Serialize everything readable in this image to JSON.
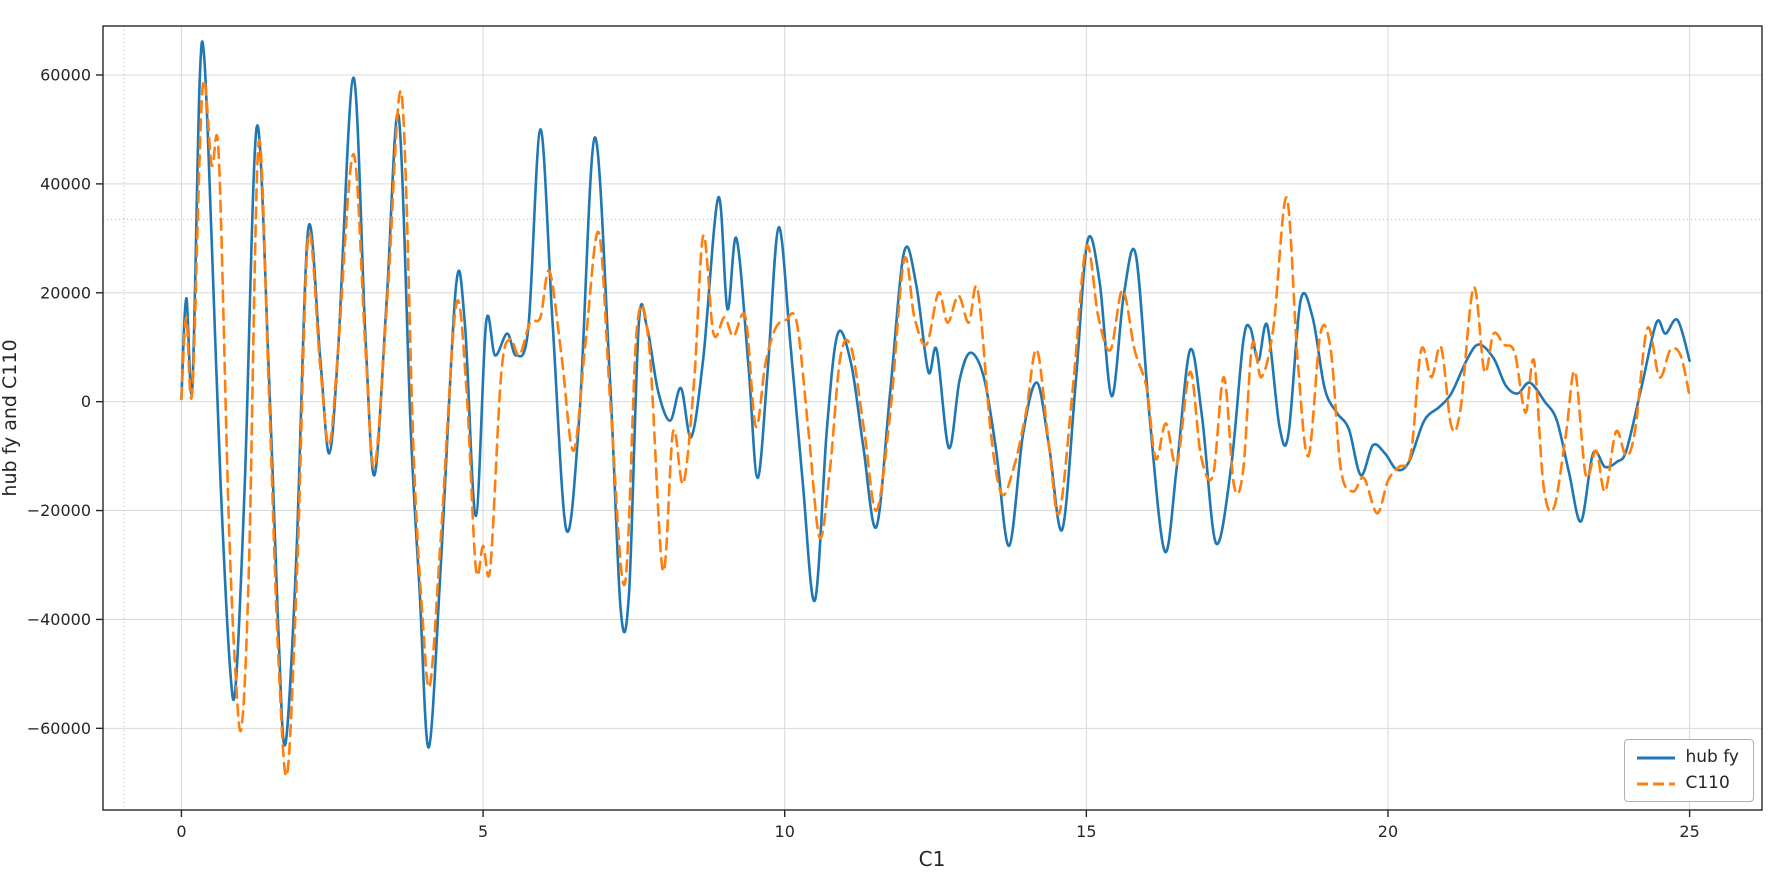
{
  "figure": {
    "background": "#ffffff",
    "border_color": "#262626"
  },
  "chart_data": {
    "type": "line",
    "title": "",
    "xlabel": "C1",
    "ylabel": "hub fy and C110",
    "xlim": [
      -1.3,
      26.2
    ],
    "ylim": [
      -75000,
      69000
    ],
    "grid": true,
    "grid_color": "#d9d9d9",
    "tick_color": "#262626",
    "legend_position": "lower right",
    "xticks": {
      "values": [
        0,
        5,
        10,
        15,
        20,
        25
      ],
      "labels": [
        "0",
        "5",
        "10",
        "15",
        "20",
        "25"
      ]
    },
    "yticks": {
      "values": [
        -60000,
        -40000,
        -20000,
        0,
        20000,
        40000,
        60000
      ],
      "labels": [
        "−60000",
        "−40000",
        "−20000",
        "0",
        "20000",
        "40000",
        "60000"
      ]
    },
    "reference_lines": {
      "vertical_x": -0.95,
      "horizontal_y": 33500,
      "color": "#b5b5b5",
      "style": "dotted"
    },
    "series": [
      {
        "name": "hub fy",
        "color": "#1f77b4",
        "style": "solid",
        "line_width": 2.6,
        "points": [
          [
            0.0,
            500
          ],
          [
            0.08,
            19000
          ],
          [
            0.18,
            2500
          ],
          [
            0.3,
            58000
          ],
          [
            0.38,
            63000
          ],
          [
            0.5,
            30000
          ],
          [
            0.65,
            -15000
          ],
          [
            0.8,
            -48000
          ],
          [
            0.9,
            -52000
          ],
          [
            1.05,
            -15000
          ],
          [
            1.25,
            50500
          ],
          [
            1.45,
            5000
          ],
          [
            1.6,
            -40000
          ],
          [
            1.72,
            -63000
          ],
          [
            1.9,
            -30000
          ],
          [
            2.1,
            31500
          ],
          [
            2.3,
            8000
          ],
          [
            2.45,
            -9500
          ],
          [
            2.6,
            10000
          ],
          [
            2.85,
            59500
          ],
          [
            3.05,
            12000
          ],
          [
            3.2,
            -13500
          ],
          [
            3.4,
            18000
          ],
          [
            3.6,
            52500
          ],
          [
            3.8,
            -5000
          ],
          [
            3.95,
            -35000
          ],
          [
            4.1,
            -63500
          ],
          [
            4.3,
            -30000
          ],
          [
            4.55,
            21000
          ],
          [
            4.7,
            14000
          ],
          [
            4.88,
            -21000
          ],
          [
            5.05,
            14500
          ],
          [
            5.2,
            8500
          ],
          [
            5.4,
            12500
          ],
          [
            5.55,
            8500
          ],
          [
            5.75,
            13500
          ],
          [
            5.95,
            50000
          ],
          [
            6.15,
            15000
          ],
          [
            6.38,
            -23500
          ],
          [
            6.6,
            -2000
          ],
          [
            6.85,
            48500
          ],
          [
            7.1,
            5000
          ],
          [
            7.28,
            -38000
          ],
          [
            7.42,
            -35000
          ],
          [
            7.58,
            14000
          ],
          [
            7.72,
            13500
          ],
          [
            7.9,
            2000
          ],
          [
            8.1,
            -3500
          ],
          [
            8.28,
            2500
          ],
          [
            8.45,
            -6500
          ],
          [
            8.65,
            8000
          ],
          [
            8.9,
            37500
          ],
          [
            9.05,
            17000
          ],
          [
            9.2,
            30000
          ],
          [
            9.4,
            6500
          ],
          [
            9.55,
            -14000
          ],
          [
            9.72,
            6000
          ],
          [
            9.9,
            32000
          ],
          [
            10.1,
            10000
          ],
          [
            10.3,
            -15000
          ],
          [
            10.5,
            -36500
          ],
          [
            10.7,
            -5000
          ],
          [
            10.88,
            12500
          ],
          [
            11.1,
            7000
          ],
          [
            11.3,
            -8000
          ],
          [
            11.52,
            -23000
          ],
          [
            11.75,
            2000
          ],
          [
            11.98,
            27500
          ],
          [
            12.18,
            21500
          ],
          [
            12.38,
            5500
          ],
          [
            12.52,
            9500
          ],
          [
            12.72,
            -8500
          ],
          [
            12.9,
            4000
          ],
          [
            13.08,
            9000
          ],
          [
            13.3,
            4500
          ],
          [
            13.5,
            -8500
          ],
          [
            13.72,
            -26500
          ],
          [
            13.95,
            -6000
          ],
          [
            14.18,
            3500
          ],
          [
            14.38,
            -8000
          ],
          [
            14.6,
            -23500
          ],
          [
            14.82,
            3000
          ],
          [
            15.02,
            29500
          ],
          [
            15.22,
            22000
          ],
          [
            15.42,
            1000
          ],
          [
            15.62,
            19500
          ],
          [
            15.82,
            27000
          ],
          [
            16.05,
            -3000
          ],
          [
            16.3,
            -27500
          ],
          [
            16.5,
            -12000
          ],
          [
            16.72,
            9500
          ],
          [
            16.92,
            -3000
          ],
          [
            17.15,
            -26000
          ],
          [
            17.4,
            -12000
          ],
          [
            17.6,
            11000
          ],
          [
            17.72,
            13500
          ],
          [
            17.85,
            7500
          ],
          [
            18.0,
            14000
          ],
          [
            18.2,
            -4500
          ],
          [
            18.35,
            -6000
          ],
          [
            18.55,
            18500
          ],
          [
            18.75,
            15500
          ],
          [
            18.95,
            2500
          ],
          [
            19.15,
            -2000
          ],
          [
            19.35,
            -5000
          ],
          [
            19.55,
            -13500
          ],
          [
            19.75,
            -8000
          ],
          [
            19.95,
            -9500
          ],
          [
            20.15,
            -12500
          ],
          [
            20.35,
            -11000
          ],
          [
            20.6,
            -3500
          ],
          [
            20.85,
            -1000
          ],
          [
            21.05,
            1500
          ],
          [
            21.3,
            7500
          ],
          [
            21.5,
            10500
          ],
          [
            21.75,
            8000
          ],
          [
            21.95,
            3000
          ],
          [
            22.15,
            1500
          ],
          [
            22.35,
            3500
          ],
          [
            22.6,
            0
          ],
          [
            22.8,
            -3500
          ],
          [
            23.0,
            -13000
          ],
          [
            23.2,
            -22000
          ],
          [
            23.4,
            -9500
          ],
          [
            23.6,
            -12000
          ],
          [
            23.8,
            -11000
          ],
          [
            23.95,
            -9000
          ],
          [
            24.2,
            2500
          ],
          [
            24.45,
            14500
          ],
          [
            24.6,
            12500
          ],
          [
            24.8,
            15000
          ],
          [
            25.0,
            7500
          ]
        ]
      },
      {
        "name": "C110",
        "color": "#ff7f0e",
        "style": "dashed",
        "line_width": 2.6,
        "points": [
          [
            0.0,
            500
          ],
          [
            0.08,
            15500
          ],
          [
            0.18,
            2000
          ],
          [
            0.35,
            57500
          ],
          [
            0.5,
            43500
          ],
          [
            0.62,
            45000
          ],
          [
            0.78,
            -20000
          ],
          [
            0.9,
            -50500
          ],
          [
            1.0,
            -59500
          ],
          [
            1.12,
            -30000
          ],
          [
            1.28,
            47500
          ],
          [
            1.45,
            2000
          ],
          [
            1.6,
            -45000
          ],
          [
            1.75,
            -68500
          ],
          [
            1.92,
            -30000
          ],
          [
            2.1,
            30000
          ],
          [
            2.3,
            6500
          ],
          [
            2.45,
            -8000
          ],
          [
            2.6,
            10000
          ],
          [
            2.85,
            45500
          ],
          [
            3.05,
            10000
          ],
          [
            3.2,
            -12000
          ],
          [
            3.42,
            20000
          ],
          [
            3.65,
            56500
          ],
          [
            3.85,
            -10000
          ],
          [
            4.0,
            -40000
          ],
          [
            4.12,
            -52000
          ],
          [
            4.3,
            -25000
          ],
          [
            4.55,
            17500
          ],
          [
            4.72,
            3000
          ],
          [
            4.88,
            -30500
          ],
          [
            5.0,
            -26500
          ],
          [
            5.12,
            -30500
          ],
          [
            5.3,
            5000
          ],
          [
            5.45,
            11500
          ],
          [
            5.6,
            8500
          ],
          [
            5.78,
            14500
          ],
          [
            5.95,
            15500
          ],
          [
            6.1,
            24000
          ],
          [
            6.3,
            8500
          ],
          [
            6.5,
            -9000
          ],
          [
            6.7,
            11000
          ],
          [
            6.92,
            31000
          ],
          [
            7.12,
            -2000
          ],
          [
            7.35,
            -33500
          ],
          [
            7.55,
            13500
          ],
          [
            7.75,
            10500
          ],
          [
            7.98,
            -31000
          ],
          [
            8.15,
            -5500
          ],
          [
            8.32,
            -15000
          ],
          [
            8.5,
            4000
          ],
          [
            8.65,
            30500
          ],
          [
            8.82,
            12500
          ],
          [
            9.0,
            15500
          ],
          [
            9.15,
            12000
          ],
          [
            9.35,
            15500
          ],
          [
            9.52,
            -4500
          ],
          [
            9.68,
            7000
          ],
          [
            9.85,
            13500
          ],
          [
            10.02,
            15000
          ],
          [
            10.2,
            14500
          ],
          [
            10.4,
            -6000
          ],
          [
            10.58,
            -25000
          ],
          [
            10.75,
            -12500
          ],
          [
            10.92,
            8000
          ],
          [
            11.1,
            10000
          ],
          [
            11.32,
            -5500
          ],
          [
            11.52,
            -20000
          ],
          [
            11.75,
            -2000
          ],
          [
            11.98,
            26000
          ],
          [
            12.15,
            15500
          ],
          [
            12.35,
            10500
          ],
          [
            12.55,
            20000
          ],
          [
            12.7,
            14500
          ],
          [
            12.88,
            19500
          ],
          [
            13.05,
            14500
          ],
          [
            13.2,
            20500
          ],
          [
            13.42,
            -6000
          ],
          [
            13.6,
            -17000
          ],
          [
            13.8,
            -12000
          ],
          [
            14.0,
            -2000
          ],
          [
            14.18,
            9500
          ],
          [
            14.38,
            -8000
          ],
          [
            14.55,
            -20500
          ],
          [
            14.78,
            3000
          ],
          [
            15.0,
            28500
          ],
          [
            15.2,
            15500
          ],
          [
            15.4,
            9500
          ],
          [
            15.6,
            20500
          ],
          [
            15.8,
            9500
          ],
          [
            16.0,
            2500
          ],
          [
            16.15,
            -10500
          ],
          [
            16.32,
            -4000
          ],
          [
            16.5,
            -11500
          ],
          [
            16.72,
            5500
          ],
          [
            16.9,
            -10000
          ],
          [
            17.1,
            -13500
          ],
          [
            17.28,
            4500
          ],
          [
            17.45,
            -15500
          ],
          [
            17.6,
            -12500
          ],
          [
            17.75,
            10500
          ],
          [
            17.9,
            4500
          ],
          [
            18.1,
            13500
          ],
          [
            18.32,
            37500
          ],
          [
            18.5,
            8000
          ],
          [
            18.68,
            -10000
          ],
          [
            18.88,
            12500
          ],
          [
            19.05,
            9500
          ],
          [
            19.22,
            -12500
          ],
          [
            19.42,
            -16500
          ],
          [
            19.6,
            -14000
          ],
          [
            19.82,
            -20500
          ],
          [
            20.0,
            -14500
          ],
          [
            20.18,
            -12000
          ],
          [
            20.38,
            -9500
          ],
          [
            20.55,
            9500
          ],
          [
            20.72,
            4500
          ],
          [
            20.88,
            10000
          ],
          [
            21.05,
            -4500
          ],
          [
            21.2,
            -1500
          ],
          [
            21.42,
            21000
          ],
          [
            21.6,
            5500
          ],
          [
            21.75,
            12500
          ],
          [
            21.92,
            10500
          ],
          [
            22.1,
            9000
          ],
          [
            22.28,
            -2000
          ],
          [
            22.42,
            7500
          ],
          [
            22.58,
            -15500
          ],
          [
            22.75,
            -19500
          ],
          [
            22.95,
            -6000
          ],
          [
            23.1,
            5500
          ],
          [
            23.28,
            -13500
          ],
          [
            23.45,
            -9000
          ],
          [
            23.6,
            -16500
          ],
          [
            23.78,
            -5500
          ],
          [
            23.95,
            -10000
          ],
          [
            24.1,
            -5000
          ],
          [
            24.3,
            13500
          ],
          [
            24.5,
            4500
          ],
          [
            24.68,
            9500
          ],
          [
            24.85,
            8500
          ],
          [
            25.0,
            1000
          ]
        ]
      }
    ]
  }
}
